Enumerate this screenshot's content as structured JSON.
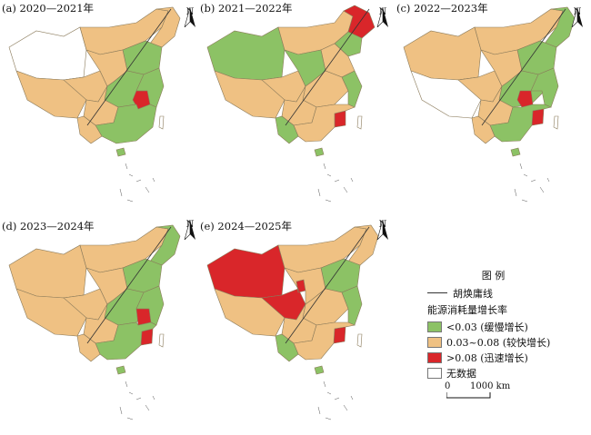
{
  "panels": [
    {
      "label": "(a) 2020—2021年"
    },
    {
      "label": "(b) 2021—2022年"
    },
    {
      "label": "(c) 2022—2023年"
    },
    {
      "label": "(d) 2023—2024年"
    },
    {
      "label": "(e) 2024—2025年"
    }
  ],
  "north_label": "N",
  "legend": {
    "title": "图 例",
    "hu_line_label": "胡焕庸线",
    "subtitle": "能源消耗量增长率",
    "items": [
      {
        "label": "<0.03 (缓慢增长)",
        "color": "#8cc265"
      },
      {
        "label": "0.03~0.08 (较快增长)",
        "color": "#efc183"
      },
      {
        "label": ">0.08 (迅速增长)",
        "color": "#d9262a"
      },
      {
        "label": "无数据",
        "color": "#ffffff"
      }
    ]
  },
  "scale": {
    "start": "0",
    "end": "1000 km"
  },
  "colors": {
    "slow": "#8cc265",
    "fast": "#efc183",
    "rapid": "#d9262a",
    "nodata": "#ffffff",
    "border": "#8a7a5a"
  }
}
